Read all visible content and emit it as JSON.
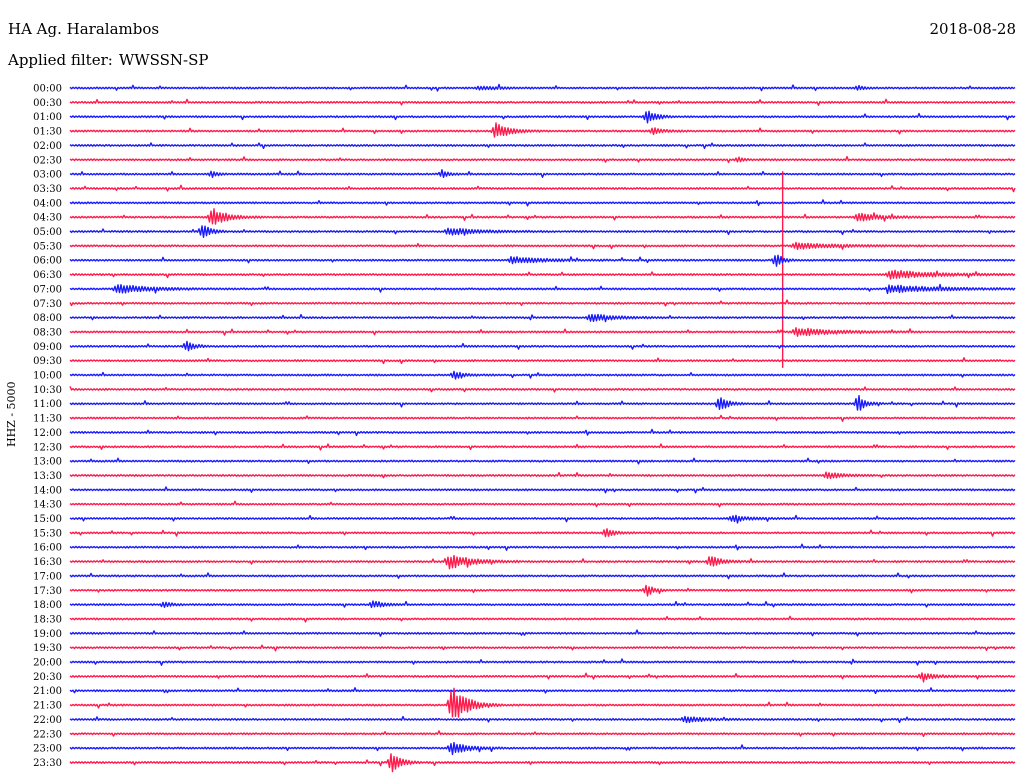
{
  "header": {
    "station": "HA Ag. Haralambos",
    "date": "2018-08-28",
    "filter_label": "Applied filter:",
    "filter_value": "WWSSN-SP"
  },
  "channel_label": "HHZ - 5000",
  "colors": {
    "trace_a": "#1a1aff",
    "trace_b": "#ff1a4b"
  },
  "chart_data": {
    "type": "line",
    "title": "HA Ag. Haralambos",
    "xlabel": "",
    "ylabel": "HHZ - 5000",
    "row_labels": [
      "00:00",
      "00:30",
      "01:00",
      "01:30",
      "02:00",
      "02:30",
      "03:00",
      "03:30",
      "04:00",
      "04:30",
      "05:00",
      "05:30",
      "06:00",
      "06:30",
      "07:00",
      "07:30",
      "08:00",
      "08:30",
      "09:00",
      "09:30",
      "10:00",
      "10:30",
      "11:00",
      "11:30",
      "12:00",
      "12:30",
      "13:00",
      "13:30",
      "14:00",
      "14:30",
      "15:00",
      "15:30",
      "16:00",
      "16:30",
      "17:00",
      "17:30",
      "18:00",
      "18:30",
      "19:00",
      "19:30",
      "20:00",
      "20:30",
      "21:00",
      "21:30",
      "22:00",
      "22:30",
      "23:00",
      "23:30"
    ],
    "row_minutes": 30,
    "grid": false,
    "events": [
      {
        "row": "00:00",
        "minute": 13,
        "amp": 0.25,
        "dur": 1.2
      },
      {
        "row": "00:00",
        "minute": 25,
        "amp": 0.35,
        "dur": 0.3
      },
      {
        "row": "01:00",
        "minute": 18.3,
        "amp": 1.0,
        "dur": 0.6
      },
      {
        "row": "01:30",
        "minute": 13.5,
        "amp": 1.2,
        "dur": 0.9
      },
      {
        "row": "01:30",
        "minute": 18.5,
        "amp": 0.5,
        "dur": 0.6
      },
      {
        "row": "02:30",
        "minute": 21.2,
        "amp": 0.4,
        "dur": 0.3
      },
      {
        "row": "03:00",
        "minute": 4.5,
        "amp": 0.5,
        "dur": 0.3
      },
      {
        "row": "03:00",
        "minute": 11.8,
        "amp": 0.6,
        "dur": 0.4
      },
      {
        "row": "04:30",
        "minute": 4.5,
        "amp": 1.4,
        "dur": 1.0
      },
      {
        "row": "04:30",
        "minute": 25,
        "amp": 0.6,
        "dur": 1.5
      },
      {
        "row": "05:00",
        "minute": 4.2,
        "amp": 1.3,
        "dur": 0.5
      },
      {
        "row": "05:00",
        "minute": 12,
        "amp": 0.5,
        "dur": 2.0
      },
      {
        "row": "05:30",
        "minute": 23,
        "amp": 0.5,
        "dur": 2.5
      },
      {
        "row": "06:00",
        "minute": 14,
        "amp": 0.5,
        "dur": 2.0
      },
      {
        "row": "06:00",
        "minute": 22.4,
        "amp": 1.2,
        "dur": 0.4
      },
      {
        "row": "06:30",
        "minute": 26,
        "amp": 0.6,
        "dur": 3.0
      },
      {
        "row": "07:00",
        "minute": 1.5,
        "amp": 0.7,
        "dur": 2.0
      },
      {
        "row": "07:00",
        "minute": 26,
        "amp": 0.6,
        "dur": 3.0
      },
      {
        "row": "08:00",
        "minute": 16.5,
        "amp": 0.6,
        "dur": 1.5
      },
      {
        "row": "08:30",
        "minute": 23,
        "amp": 0.6,
        "dur": 2.5
      },
      {
        "row": "09:00",
        "minute": 3.7,
        "amp": 0.8,
        "dur": 0.5
      },
      {
        "row": "10:00",
        "minute": 12.2,
        "amp": 0.6,
        "dur": 0.6
      },
      {
        "row": "11:00",
        "minute": 20.6,
        "amp": 1.3,
        "dur": 0.5
      },
      {
        "row": "11:00",
        "minute": 25,
        "amp": 1.3,
        "dur": 0.5
      },
      {
        "row": "13:30",
        "minute": 24,
        "amp": 0.5,
        "dur": 1.0
      },
      {
        "row": "15:00",
        "minute": 21,
        "amp": 0.5,
        "dur": 1.0
      },
      {
        "row": "15:30",
        "minute": 17,
        "amp": 0.6,
        "dur": 0.6
      },
      {
        "row": "16:30",
        "minute": 12,
        "amp": 1.1,
        "dur": 1.5
      },
      {
        "row": "16:30",
        "minute": 20.3,
        "amp": 0.8,
        "dur": 0.8
      },
      {
        "row": "17:30",
        "minute": 18.3,
        "amp": 0.9,
        "dur": 0.4
      },
      {
        "row": "18:00",
        "minute": 3,
        "amp": 0.5,
        "dur": 0.4
      },
      {
        "row": "18:00",
        "minute": 9.6,
        "amp": 0.5,
        "dur": 0.8
      },
      {
        "row": "20:30",
        "minute": 27,
        "amp": 0.5,
        "dur": 1.0
      },
      {
        "row": "21:30",
        "minute": 12.1,
        "amp": 3.0,
        "dur": 1.0
      },
      {
        "row": "22:00",
        "minute": 19.5,
        "amp": 0.5,
        "dur": 1.2
      },
      {
        "row": "23:00",
        "minute": 12.1,
        "amp": 1.0,
        "dur": 1.0
      },
      {
        "row": "23:30",
        "minute": 10.2,
        "amp": 1.6,
        "dur": 0.6
      }
    ],
    "spikes": [
      {
        "row": "05:30",
        "minute": 22.6,
        "up": 5.2,
        "down": 8.5
      }
    ]
  }
}
